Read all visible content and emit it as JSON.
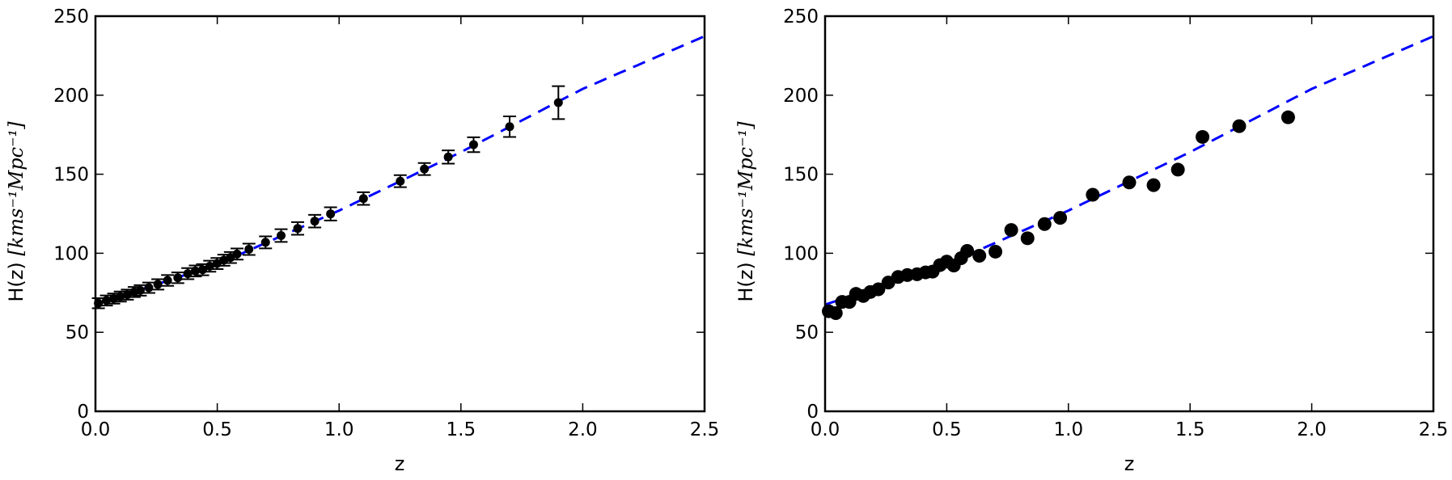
{
  "chart_data": [
    {
      "type": "scatter",
      "xlabel": "z",
      "ylabel_prefix": "H(z)",
      "ylabel_units": "[kms⁻¹Mpc⁻¹]",
      "xlim": [
        0,
        2.5
      ],
      "ylim": [
        0,
        250
      ],
      "xticks": [
        "0.0",
        "0.5",
        "1.0",
        "1.5",
        "2.0",
        "2.5"
      ],
      "yticks": [
        "0",
        "50",
        "100",
        "150",
        "200",
        "250"
      ],
      "grid": false,
      "marker_color": "#000000",
      "fit_line": {
        "style": "dashed",
        "color": "#0000ff",
        "z": [
          0,
          0.5,
          1.0,
          1.5,
          2.0,
          2.5
        ],
        "H": [
          67.5,
          93,
          127,
          164,
          204,
          237.3
        ]
      },
      "points": {
        "z": [
          0.012,
          0.045,
          0.075,
          0.102,
          0.131,
          0.159,
          0.184,
          0.219,
          0.256,
          0.296,
          0.338,
          0.379,
          0.41,
          0.44,
          0.469,
          0.499,
          0.527,
          0.554,
          0.581,
          0.63,
          0.698,
          0.762,
          0.83,
          0.9,
          0.965,
          1.1,
          1.251,
          1.35,
          1.448,
          1.552,
          1.7,
          1.9
        ],
        "H": [
          68.4,
          70.1,
          71.3,
          72.6,
          73.8,
          75.5,
          76.5,
          78.2,
          80.3,
          82.8,
          84.5,
          87.1,
          88.8,
          89.6,
          91.8,
          93.5,
          95.6,
          97.3,
          99.5,
          102.5,
          106.9,
          111.2,
          115.7,
          120.3,
          124.9,
          134.6,
          145.6,
          153.3,
          160.9,
          168.7,
          180.1,
          195.3
        ],
        "err": [
          3.2,
          3.2,
          3.2,
          3.2,
          3.2,
          3.2,
          3.3,
          3.3,
          3.3,
          3.4,
          3.4,
          3.5,
          3.5,
          3.5,
          3.5,
          3.5,
          3.5,
          3.5,
          3.5,
          3.6,
          3.8,
          4,
          4,
          4,
          4.2,
          4,
          3.8,
          3.8,
          4.2,
          4.7,
          6.5,
          10.4
        ]
      }
    },
    {
      "type": "scatter",
      "xlabel": "z",
      "ylabel_prefix": "H(z)",
      "ylabel_units": "[kms⁻¹Mpc⁻¹]",
      "xlim": [
        0,
        2.5
      ],
      "ylim": [
        0,
        250
      ],
      "xticks": [
        "0.0",
        "0.5",
        "1.0",
        "1.5",
        "2.0",
        "2.5"
      ],
      "yticks": [
        "0",
        "50",
        "100",
        "150",
        "200",
        "250"
      ],
      "grid": false,
      "marker_color": "#000000",
      "fit_line": {
        "style": "dashed",
        "color": "#0000ff",
        "z": [
          0,
          0.5,
          1.0,
          1.5,
          2.0,
          2.5
        ],
        "H": [
          67.5,
          93,
          127,
          164,
          204,
          237.3
        ]
      },
      "points": {
        "z": [
          0.015,
          0.044,
          0.07,
          0.1,
          0.127,
          0.157,
          0.186,
          0.219,
          0.26,
          0.3,
          0.338,
          0.378,
          0.413,
          0.442,
          0.472,
          0.5,
          0.529,
          0.559,
          0.584,
          0.634,
          0.7,
          0.765,
          0.832,
          0.902,
          0.966,
          1.1,
          1.25,
          1.35,
          1.45,
          1.551,
          1.702,
          1.903
        ],
        "H": [
          63.3,
          62.1,
          69.2,
          69.2,
          74.3,
          73.0,
          75.5,
          77.2,
          81.5,
          85.0,
          86.2,
          86.7,
          87.9,
          88.4,
          92.5,
          94.7,
          92.2,
          96.9,
          101.5,
          98.4,
          101.0,
          114.7,
          109.5,
          118.5,
          122.4,
          137.0,
          144.8,
          143.1,
          152.9,
          173.6,
          180.4,
          186.0
        ]
      }
    }
  ]
}
